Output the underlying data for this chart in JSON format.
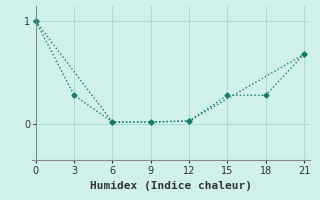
{
  "line1_x": [
    0,
    3,
    6,
    9,
    12,
    15,
    18,
    21
  ],
  "line1_y": [
    1.0,
    0.28,
    0.02,
    0.02,
    0.03,
    0.28,
    0.28,
    0.68
  ],
  "line2_x": [
    0,
    6,
    9,
    12,
    21
  ],
  "line2_y": [
    1.0,
    0.02,
    0.02,
    0.03,
    0.68
  ],
  "color": "#1a7a6e",
  "bg_color": "#cff0eb",
  "xlabel": "Humidex (Indice chaleur)",
  "xlabel_fontsize": 8,
  "xticks": [
    0,
    3,
    6,
    9,
    12,
    15,
    18,
    21
  ],
  "yticks": [
    0,
    1
  ],
  "xlim": [
    -0.3,
    21.5
  ],
  "ylim": [
    -0.35,
    1.15
  ],
  "grid_color": "#aaddd8",
  "marker": "D",
  "markersize": 2.5,
  "linewidth": 1.0
}
